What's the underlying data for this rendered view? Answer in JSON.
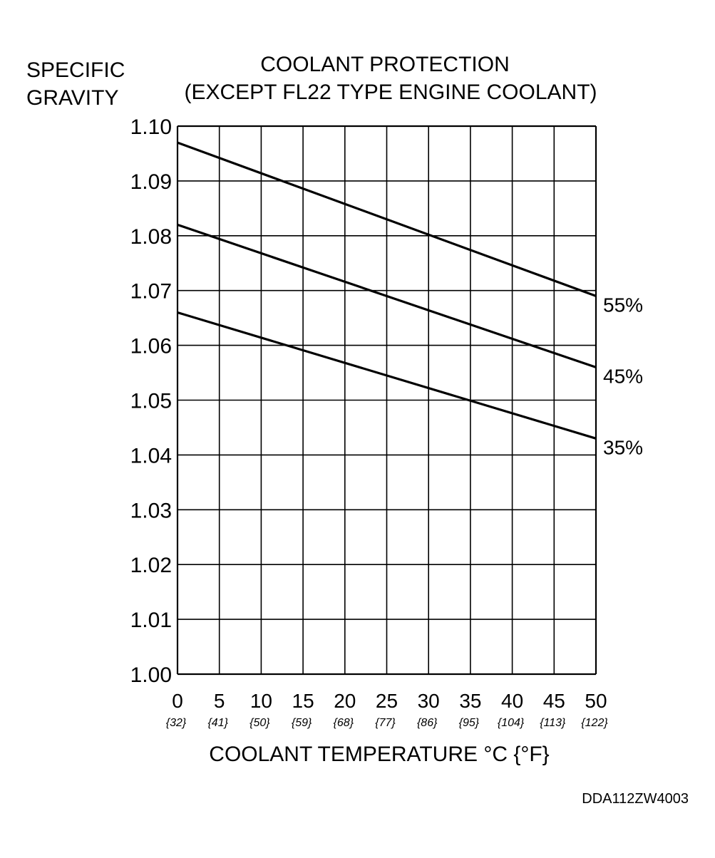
{
  "chart_data": {
    "type": "line",
    "title": [
      "COOLANT PROTECTION",
      "(EXCEPT FL22 TYPE ENGINE COOLANT)"
    ],
    "ylabel": [
      "SPECIFIC",
      "GRAVITY"
    ],
    "xlabel": "COOLANT TEMPERATURE  °C {°F}",
    "x_ticks": [
      "0",
      "5",
      "10",
      "15",
      "20",
      "25",
      "30",
      "35",
      "40",
      "45",
      "50"
    ],
    "x_ticks_f": [
      "{32}",
      "{41}",
      "{50}",
      "{59}",
      "{68}",
      "{77}",
      "{86}",
      "{95}",
      "{104}",
      "{113}",
      "{122}"
    ],
    "y_ticks": [
      "1.10",
      "1.09",
      "1.08",
      "1.07",
      "1.06",
      "1.05",
      "1.04",
      "1.03",
      "1.02",
      "1.01",
      "1.00"
    ],
    "xlim": [
      0,
      50
    ],
    "ylim": [
      1.0,
      1.1
    ],
    "grid": true,
    "series": [
      {
        "name": "55%",
        "x": [
          0,
          50
        ],
        "y": [
          1.097,
          1.069
        ]
      },
      {
        "name": "45%",
        "x": [
          0,
          50
        ],
        "y": [
          1.082,
          1.056
        ]
      },
      {
        "name": "35%",
        "x": [
          0,
          50
        ],
        "y": [
          1.066,
          1.043
        ]
      }
    ]
  },
  "figure_code": "DDA112ZW4003",
  "colors": {
    "line": "#000000",
    "background": "#ffffff"
  }
}
